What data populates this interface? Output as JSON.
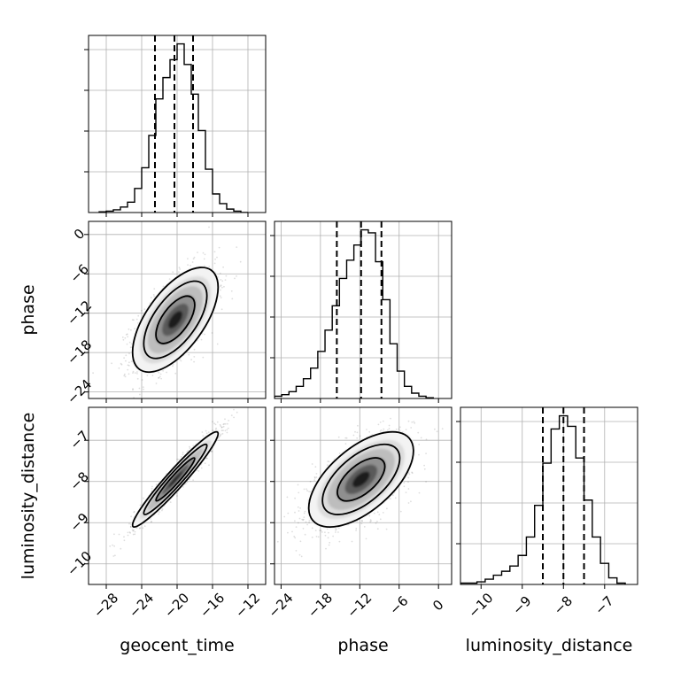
{
  "chart_data": {
    "type": "corner",
    "parameters": [
      "geocent_time",
      "phase",
      "luminosity_distance"
    ],
    "axis_labels": {
      "bottom": [
        "geocent_time",
        "phase",
        "luminosity_distance"
      ],
      "left": [
        "phase",
        "luminosity_distance"
      ]
    },
    "ranges": {
      "geocent_time": [
        -30,
        -10
      ],
      "phase": [
        -25,
        2
      ],
      "luminosity_distance": [
        -10.5,
        -6.2
      ]
    },
    "ticks": {
      "geocent_time": [
        "-28",
        "-24",
        "-20",
        "-16",
        "-12"
      ],
      "phase": [
        "-24",
        "-18",
        "-12",
        "-6",
        "0"
      ],
      "luminosity_distance": [
        "-10",
        "-9",
        "-8",
        "-7"
      ]
    },
    "tick_values": {
      "geocent_time": [
        -28,
        -24,
        -20,
        -16,
        -12
      ],
      "phase": [
        -24,
        -18,
        -12,
        -6,
        0
      ],
      "luminosity_distance": [
        -10,
        -9,
        -8,
        -7
      ]
    },
    "histograms": {
      "geocent_time": {
        "bin_edges": [
          -28.8,
          -28,
          -27.2,
          -26.4,
          -25.6,
          -24.8,
          -24,
          -23.2,
          -22.4,
          -21.6,
          -20.8,
          -20,
          -19.2,
          -18.4,
          -17.6,
          -16.8,
          -16,
          -15.2,
          -14.4,
          -13.6,
          -12.8,
          -12
        ],
        "counts": [
          1,
          2,
          4,
          8,
          15,
          35,
          65,
          112,
          165,
          196,
          222,
          245,
          215,
          172,
          119,
          63,
          27,
          13,
          5,
          2,
          0
        ],
        "quantiles": [
          -22.5,
          -20.3,
          -18.2
        ]
      },
      "phase": {
        "bin_edges": [
          -25,
          -23.9,
          -22.8,
          -21.7,
          -20.6,
          -19.5,
          -18.4,
          -17.3,
          -16.2,
          -15.1,
          -14,
          -12.9,
          -11.8,
          -10.7,
          -9.6,
          -8.5,
          -7.4,
          -6.3,
          -5.2,
          -4.1,
          -3,
          -1.9,
          -0.8
        ],
        "counts": [
          3,
          5,
          9,
          16,
          26,
          40,
          62,
          90,
          122,
          158,
          182,
          202,
          222,
          218,
          180,
          130,
          72,
          36,
          16,
          7,
          3,
          1
        ],
        "quantiles": [
          -15.5,
          -11.8,
          -8.7
        ]
      },
      "luminosity_distance": {
        "bin_edges": [
          -10.5,
          -10.3,
          -10.1,
          -9.9,
          -9.7,
          -9.5,
          -9.3,
          -9.1,
          -8.9,
          -8.7,
          -8.5,
          -8.3,
          -8.1,
          -7.9,
          -7.7,
          -7.5,
          -7.3,
          -7.1,
          -6.9,
          -6.7,
          -6.5
        ],
        "counts": [
          1,
          1,
          2,
          4,
          7,
          10,
          14,
          22,
          36,
          60,
          92,
          118,
          128,
          120,
          96,
          64,
          36,
          16,
          5,
          1
        ],
        "quantiles": [
          -8.5,
          -8.0,
          -7.5
        ]
      }
    },
    "joint": [
      {
        "x": "geocent_time",
        "y": "phase",
        "mean": [
          -20.2,
          -13.0
        ],
        "std": [
          2.3,
          3.8
        ],
        "corr": 0.62
      },
      {
        "x": "geocent_time",
        "y": "luminosity_distance",
        "mean": [
          -20.2,
          -7.95
        ],
        "std": [
          2.3,
          0.55
        ],
        "corr": 0.96
      },
      {
        "x": "phase",
        "y": "luminosity_distance",
        "mean": [
          -11.8,
          -7.95
        ],
        "std": [
          3.8,
          0.55
        ],
        "corr": 0.6
      }
    ],
    "quantile_lines": "dashed",
    "grid": true
  }
}
